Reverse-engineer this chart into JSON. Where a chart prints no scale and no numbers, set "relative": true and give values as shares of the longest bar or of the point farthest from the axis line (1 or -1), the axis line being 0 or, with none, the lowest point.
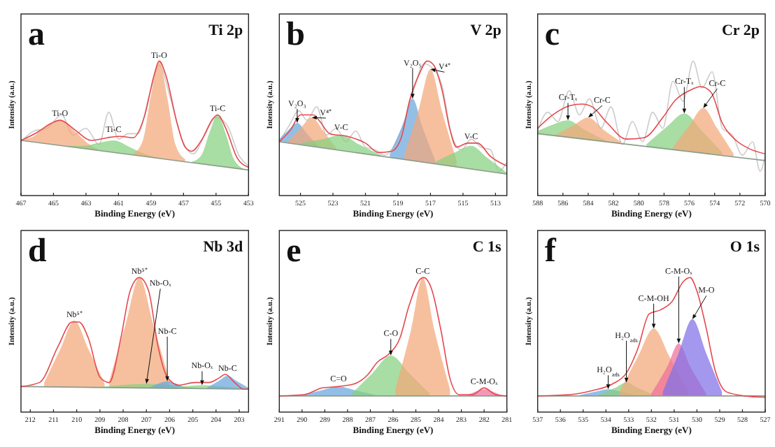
{
  "chart_data": [
    {
      "type": "area",
      "title": "Ti 2p",
      "xlabel": "Binding Energy (eV)",
      "ylabel": "Intensity (a.u.)",
      "relative": true,
      "xlim": [
        467,
        453
      ],
      "xticks": [
        467,
        465,
        463,
        461,
        459,
        457,
        455,
        453
      ],
      "series": [
        {
          "type": "line",
          "color": "#cccccc",
          "x": [
            467,
            466.2,
            465.4,
            464.5,
            463.8,
            463.0,
            462.2,
            461.6,
            461.0,
            460.4,
            459.8,
            459.1,
            458.5,
            457.8,
            457.1,
            456.4,
            455.7,
            455.0,
            454.3,
            453.6,
            453.0
          ],
          "values": [
            0.4,
            0.48,
            0.5,
            0.6,
            0.45,
            0.5,
            0.38,
            0.62,
            0.42,
            0.46,
            0.46,
            0.75,
            0.97,
            0.72,
            0.42,
            0.31,
            0.45,
            0.58,
            0.52,
            0.3,
            0.22
          ]
        },
        {
          "name": "Ti-O",
          "color": "#f3a77a",
          "x": [
            467,
            466.4,
            465.5,
            464.6,
            463.7,
            462.8,
            462.0
          ],
          "values": [
            0.42,
            0.43,
            0.51,
            0.56,
            0.48,
            0.38,
            0.33
          ]
        },
        {
          "name": "Ti-C",
          "color": "#86d07f",
          "x": [
            464.2,
            463.2,
            462.3,
            461.3,
            460.3,
            459.4,
            458.4
          ],
          "values": [
            0.37,
            0.37,
            0.39,
            0.41,
            0.36,
            0.31,
            0.28
          ]
        },
        {
          "name": "Ti-O",
          "color": "#f3a77a",
          "x": [
            460.1,
            459.5,
            459.0,
            458.5,
            458.0,
            457.5,
            456.9
          ],
          "values": [
            0.31,
            0.41,
            0.75,
            1.0,
            0.73,
            0.38,
            0.27
          ]
        },
        {
          "name": "Ti-C",
          "color": "#86d07f",
          "x": [
            456.5,
            455.9,
            455.4,
            454.9,
            454.4,
            453.9,
            453.3
          ],
          "values": [
            0.25,
            0.3,
            0.47,
            0.6,
            0.46,
            0.27,
            0.2
          ]
        },
        {
          "type": "line",
          "color": "#8c9c8c",
          "x": [
            467,
            453
          ],
          "values": [
            0.41,
            0.19
          ]
        },
        {
          "type": "line",
          "color": "#e5484d",
          "x": [
            467,
            466,
            465.1,
            464.6,
            463.7,
            462.7,
            461.7,
            460.9,
            460.1,
            459.4,
            458.8,
            458.5,
            458.1,
            457.4,
            456.9,
            456.5,
            455.9,
            455.2,
            454.9,
            454.4,
            453.7,
            453
          ],
          "values": [
            0.41,
            0.47,
            0.54,
            0.56,
            0.49,
            0.41,
            0.43,
            0.44,
            0.43,
            0.59,
            0.9,
            1.0,
            0.9,
            0.54,
            0.36,
            0.33,
            0.41,
            0.57,
            0.6,
            0.5,
            0.28,
            0.21
          ]
        }
      ],
      "annotations": [
        "a"
      ]
    },
    {
      "type": "area",
      "title": "V 2p",
      "xlabel": "Binding Energy (eV)",
      "ylabel": "Intensity (a.u.)",
      "relative": true,
      "xlim": [
        526.3,
        512.3
      ],
      "xticks": [
        525,
        523,
        521,
        519,
        517,
        515,
        513
      ],
      "series": [
        {
          "type": "line",
          "color": "#cccccc",
          "x": [
            526.3,
            525.7,
            525.1,
            524.6,
            524.0,
            523.4,
            522.8,
            522.2,
            521.6,
            521.0,
            520.4,
            519.8,
            519.2,
            518.6,
            518.0,
            517.4,
            516.9,
            516.3,
            515.7,
            515.1,
            514.5,
            513.9,
            513.3,
            512.8,
            512.3
          ],
          "values": [
            0.4,
            0.52,
            0.63,
            0.56,
            0.66,
            0.45,
            0.5,
            0.4,
            0.48,
            0.36,
            0.34,
            0.3,
            0.38,
            0.55,
            0.8,
            0.98,
            0.95,
            0.82,
            0.45,
            0.34,
            0.42,
            0.36,
            0.34,
            0.18,
            0.25
          ]
        },
        {
          "name": "V₂O₃",
          "color": "#6aa6dc",
          "x": [
            526.3,
            525.8,
            525.2,
            524.6,
            523.9
          ],
          "values": [
            0.42,
            0.48,
            0.54,
            0.46,
            0.37
          ]
        },
        {
          "name": "V⁴⁺",
          "color": "#f3a77a",
          "x": [
            525.8,
            525.0,
            524.3,
            523.6,
            522.8
          ],
          "values": [
            0.4,
            0.5,
            0.58,
            0.48,
            0.35
          ]
        },
        {
          "name": "V-C",
          "color": "#86d07f",
          "x": [
            525.0,
            523.6,
            522.5,
            521.4,
            520.0
          ],
          "values": [
            0.39,
            0.42,
            0.45,
            0.38,
            0.3
          ]
        },
        {
          "name": "V₂O₅",
          "color": "#6aa6dc",
          "x": [
            519.5,
            518.7,
            518.1,
            517.5,
            516.7
          ],
          "values": [
            0.31,
            0.53,
            0.72,
            0.51,
            0.26
          ]
        },
        {
          "name": "V⁴⁺",
          "color": "#f3a77a",
          "x": [
            518.6,
            517.7,
            517.0,
            516.3,
            515.4
          ],
          "values": [
            0.31,
            0.65,
            0.94,
            0.63,
            0.26
          ]
        },
        {
          "name": "V-C",
          "color": "#86d07f",
          "x": [
            516.7,
            515.5,
            514.5,
            513.5,
            512.3
          ],
          "values": [
            0.25,
            0.32,
            0.37,
            0.28,
            0.17
          ]
        },
        {
          "type": "line",
          "color": "#8c9c8c",
          "x": [
            526.3,
            512.3
          ],
          "values": [
            0.4,
            0.16
          ]
        },
        {
          "type": "line",
          "color": "#e5484d",
          "x": [
            526.3,
            525.6,
            525.0,
            524.6,
            524.2,
            523.8,
            523.2,
            522.1,
            521.0,
            520.2,
            519.4,
            518.8,
            518.3,
            517.7,
            517.2,
            516.8,
            516.3,
            515.8,
            515.4,
            514.7,
            514.1,
            513.3,
            512.3
          ],
          "values": [
            0.4,
            0.49,
            0.6,
            0.6,
            0.6,
            0.55,
            0.46,
            0.44,
            0.39,
            0.32,
            0.33,
            0.43,
            0.7,
            0.9,
            1.0,
            0.97,
            0.79,
            0.49,
            0.36,
            0.39,
            0.39,
            0.29,
            0.22
          ]
        }
      ],
      "annotations": [
        "b"
      ]
    },
    {
      "type": "area",
      "title": "Cr 2p",
      "xlabel": "Binding Energy (eV)",
      "ylabel": "Intensity (a.u.)",
      "relative": true,
      "xlim": [
        588,
        570
      ],
      "xticks": [
        588,
        586,
        584,
        582,
        580,
        578,
        576,
        574,
        572,
        570
      ],
      "series": [
        {
          "type": "line",
          "color": "#cccccc",
          "x": [
            588,
            587.2,
            586.4,
            585.5,
            584.7,
            583.9,
            583.0,
            582.2,
            581.3,
            580.5,
            579.7,
            578.9,
            578.1,
            577.3,
            576.5,
            575.7,
            575.0,
            574.2,
            573.4,
            572.6,
            571.8,
            571.0,
            570.4,
            570
          ],
          "values": [
            0.48,
            0.62,
            0.55,
            0.78,
            0.6,
            0.72,
            0.5,
            0.66,
            0.38,
            0.55,
            0.4,
            0.62,
            0.5,
            0.85,
            0.7,
            1.0,
            0.8,
            0.92,
            0.5,
            0.45,
            0.3,
            0.4,
            0.18,
            0.3
          ]
        },
        {
          "name": "Cr-Tₓ",
          "color": "#86d07f",
          "x": [
            588,
            587.0,
            585.6,
            584.3,
            582.6
          ],
          "values": [
            0.48,
            0.52,
            0.56,
            0.49,
            0.41
          ]
        },
        {
          "name": "Cr-C",
          "color": "#f3a77a",
          "x": [
            586.6,
            585.2,
            584.0,
            582.8,
            581.4
          ],
          "values": [
            0.45,
            0.52,
            0.58,
            0.49,
            0.4
          ]
        },
        {
          "name": "Cr-Tₓ",
          "color": "#86d07f",
          "x": [
            579.4,
            577.8,
            576.4,
            575.0,
            573.4
          ],
          "values": [
            0.38,
            0.51,
            0.61,
            0.48,
            0.32
          ]
        },
        {
          "name": "Cr-C",
          "color": "#f3a77a",
          "x": [
            577.3,
            576.0,
            574.9,
            573.8,
            572.5
          ],
          "values": [
            0.36,
            0.52,
            0.65,
            0.5,
            0.31
          ]
        },
        {
          "type": "line",
          "color": "#8c9c8c",
          "x": [
            588,
            570
          ],
          "values": [
            0.46,
            0.26
          ]
        },
        {
          "type": "line",
          "color": "#e5484d",
          "x": [
            588,
            586.8,
            585.4,
            584.5,
            583.7,
            582.5,
            581,
            579.6,
            578.1,
            577.1,
            576,
            575.1,
            574.3,
            573.4,
            572.3,
            571.3,
            570
          ],
          "values": [
            0.5,
            0.6,
            0.67,
            0.68,
            0.66,
            0.54,
            0.42,
            0.43,
            0.58,
            0.71,
            0.78,
            0.81,
            0.77,
            0.54,
            0.41,
            0.35,
            0.31
          ]
        }
      ],
      "annotations": [
        "c"
      ]
    },
    {
      "type": "area",
      "title": "Nb 3d",
      "xlabel": "Binding Energy (eV)",
      "ylabel": "Intensity (a.u.)",
      "relative": true,
      "xlim": [
        212.4,
        202.6
      ],
      "xticks": [
        212,
        211,
        210,
        209,
        208,
        207,
        206,
        205,
        204,
        203
      ],
      "series": [
        {
          "name": "Nb⁵⁺",
          "color": "#f3a77a",
          "x": [
            211.4,
            210.7,
            210.1,
            209.5,
            208.8
          ],
          "values": [
            0.22,
            0.47,
            0.68,
            0.47,
            0.21
          ]
        },
        {
          "name": "Nb⁵⁺",
          "color": "#f3a77a",
          "x": [
            208.6,
            207.9,
            207.3,
            206.7,
            206.0
          ],
          "values": [
            0.23,
            0.65,
            1.0,
            0.65,
            0.23
          ]
        },
        {
          "name": "Nb-Oₓ",
          "color": "#86d07f",
          "x": [
            209.5,
            208.1,
            207.0,
            205.9,
            204.5
          ],
          "values": [
            0.18,
            0.2,
            0.21,
            0.2,
            0.17
          ]
        },
        {
          "name": "Nb-C",
          "color": "#6aa6dc",
          "x": [
            206.9,
            206.5,
            206.1,
            205.7,
            205.3
          ],
          "values": [
            0.18,
            0.21,
            0.23,
            0.21,
            0.18
          ]
        },
        {
          "name": "Nb-Oₓ",
          "color": "#86d07f",
          "x": [
            206.6,
            205.5,
            204.6,
            203.7,
            202.6
          ],
          "values": [
            0.18,
            0.19,
            0.2,
            0.19,
            0.17
          ]
        },
        {
          "name": "Nb-C",
          "color": "#6aa6dc",
          "x": [
            204.4,
            203.9,
            203.5,
            203.1,
            202.6
          ],
          "values": [
            0.18,
            0.23,
            0.27,
            0.23,
            0.18
          ]
        },
        {
          "type": "line",
          "color": "#8c9c8c",
          "x": [
            212.4,
            202.6
          ],
          "values": [
            0.19,
            0.17
          ]
        },
        {
          "type": "line",
          "color": "#e5484d",
          "x": [
            212.4,
            211.6,
            210.8,
            210.2,
            209.9,
            209.5,
            209,
            208.6,
            208.1,
            207.7,
            207.3,
            206.9,
            206.5,
            206.1,
            205.6,
            204.9,
            204.3,
            203.9,
            203.6,
            203.2,
            202.8,
            202.6
          ],
          "values": [
            0.19,
            0.22,
            0.49,
            0.67,
            0.67,
            0.55,
            0.26,
            0.22,
            0.55,
            0.9,
            1.0,
            0.9,
            0.49,
            0.26,
            0.2,
            0.22,
            0.22,
            0.25,
            0.28,
            0.22,
            0.17,
            0.17
          ]
        }
      ],
      "annotations": [
        "d"
      ]
    },
    {
      "type": "area",
      "title": "C 1s",
      "xlabel": "Binding Energy (eV)",
      "ylabel": "Intensity (a.u.)",
      "relative": true,
      "xlim": [
        291,
        281
      ],
      "xticks": [
        291,
        290,
        289,
        288,
        287,
        286,
        285,
        284,
        283,
        282,
        281
      ],
      "series": [
        {
          "name": "C=O",
          "color": "#6aa6dc",
          "x": [
            290.2,
            289.2,
            288.4,
            287.6,
            286.6
          ],
          "values": [
            0.12,
            0.16,
            0.19,
            0.16,
            0.12
          ]
        },
        {
          "name": "C-O",
          "color": "#86d07f",
          "x": [
            287.8,
            286.9,
            286.1,
            285.3,
            284.4
          ],
          "values": [
            0.14,
            0.29,
            0.42,
            0.29,
            0.14
          ]
        },
        {
          "name": "C-C",
          "color": "#f3a77a",
          "x": [
            285.9,
            285.2,
            284.7,
            284.2,
            283.5
          ],
          "values": [
            0.17,
            0.62,
            1.0,
            0.62,
            0.17
          ]
        },
        {
          "name": "C-M-Oₓ",
          "color": "#ef6f9a",
          "x": [
            282.8,
            282.4,
            282.0,
            281.6,
            281.2
          ],
          "values": [
            0.12,
            0.15,
            0.17,
            0.15,
            0.12
          ]
        },
        {
          "type": "line",
          "color": "#8c9c8c",
          "x": [
            291,
            281
          ],
          "values": [
            0.12,
            0.12
          ]
        },
        {
          "type": "line",
          "color": "#e5484d",
          "x": [
            291,
            289.9,
            289.1,
            288.4,
            287.7,
            287.1,
            286.7,
            286.2,
            285.7,
            285.3,
            284.8,
            284.66,
            284.3,
            283.9,
            283.5,
            283.1,
            282.5,
            282,
            281.5,
            281
          ],
          "values": [
            0.12,
            0.13,
            0.18,
            0.19,
            0.21,
            0.28,
            0.37,
            0.43,
            0.55,
            0.79,
            0.99,
            1.0,
            0.91,
            0.61,
            0.25,
            0.13,
            0.13,
            0.18,
            0.13,
            0.12
          ]
        }
      ],
      "annotations": [
        "e"
      ]
    },
    {
      "type": "area",
      "title": "O 1s",
      "xlabel": "Binding Energy (eV)",
      "ylabel": "Intensity (a.u.)",
      "relative": true,
      "xlim": [
        537,
        527
      ],
      "xticks": [
        537,
        536,
        535,
        534,
        533,
        532,
        531,
        530,
        529,
        528,
        527
      ],
      "series": [
        {
          "name": "H₂O$_{ads}$",
          "color": "#6aa6dc",
          "x": [
            535.3,
            534.5,
            533.9,
            533.3,
            532.5
          ],
          "values": [
            0.12,
            0.15,
            0.17,
            0.15,
            0.12
          ]
        },
        {
          "name": "H₂O$_{ads}$",
          "color": "#86d07f",
          "x": [
            534.3,
            533.6,
            533.1,
            532.6,
            531.9
          ],
          "values": [
            0.13,
            0.18,
            0.22,
            0.18,
            0.13
          ]
        },
        {
          "name": "C-M-OH",
          "color": "#f3a77a",
          "x": [
            533.4,
            532.6,
            531.9,
            531.2,
            530.4
          ],
          "values": [
            0.15,
            0.41,
            0.62,
            0.41,
            0.15
          ]
        },
        {
          "name": "C-M-Oₓ",
          "color": "#ef6f9a",
          "x": [
            532.0,
            531.3,
            530.8,
            530.3,
            529.6
          ],
          "values": [
            0.14,
            0.34,
            0.51,
            0.34,
            0.14
          ]
        },
        {
          "name": "M-O",
          "color": "#8070e8",
          "x": [
            531.5,
            530.8,
            530.2,
            529.6,
            528.9
          ],
          "values": [
            0.15,
            0.44,
            0.69,
            0.44,
            0.15
          ]
        },
        {
          "type": "line",
          "color": "#8c9c8c",
          "x": [
            537,
            527
          ],
          "values": [
            0.12,
            0.12
          ]
        },
        {
          "type": "line",
          "color": "#e5484d",
          "x": [
            537,
            535.6,
            534.6,
            533.7,
            533.1,
            532.6,
            532.1,
            531.6,
            531.1,
            530.6,
            530.3,
            530,
            529.6,
            529.2,
            528.7,
            527.9,
            527
          ],
          "values": [
            0.12,
            0.13,
            0.16,
            0.21,
            0.29,
            0.47,
            0.73,
            0.76,
            0.82,
            0.97,
            1.0,
            0.9,
            0.63,
            0.31,
            0.15,
            0.12,
            0.11
          ]
        }
      ],
      "annotations": [
        "f"
      ]
    }
  ]
}
